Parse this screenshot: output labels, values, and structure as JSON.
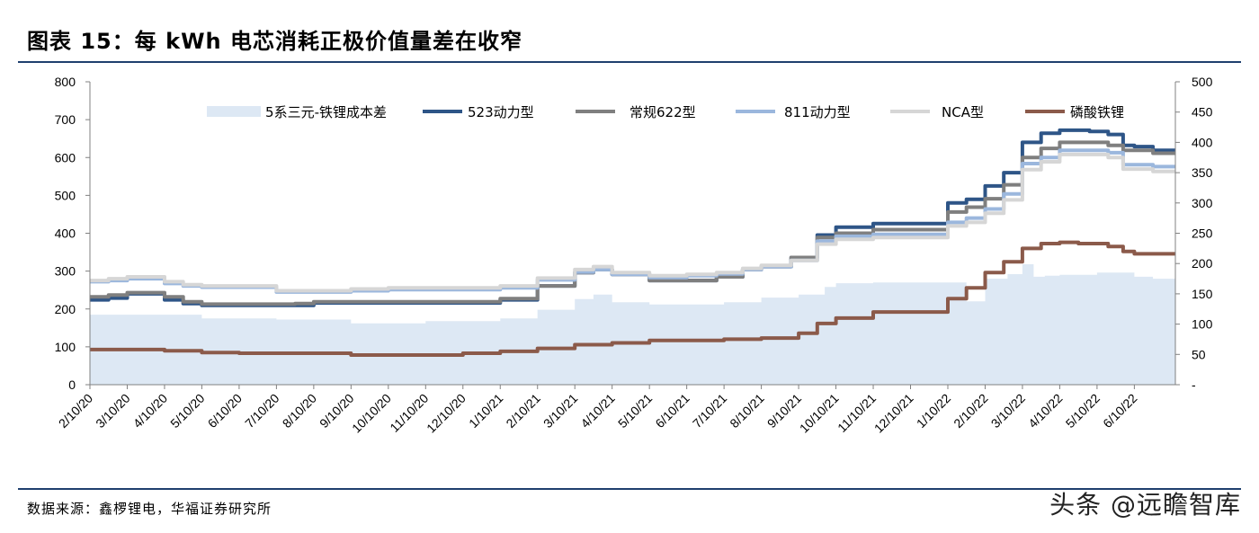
{
  "header": {
    "title": "图表 15：每 kWh 电芯消耗正极价值量差在收窄"
  },
  "footer": {
    "source": "数据来源：鑫椤锂电，华福证券研究所",
    "watermark": "头条 @远瞻智库"
  },
  "colors": {
    "rule": "#1f3f6e",
    "area": "#dde8f4",
    "s523": "#2e5587",
    "s622": "#7f7f7f",
    "s811": "#9bb7dd",
    "nca": "#d6d6d6",
    "lfp": "#8b5a4a"
  },
  "chart_data": {
    "type": "line",
    "x_labels": [
      "2/10/20",
      "3/10/20",
      "4/10/20",
      "5/10/20",
      "6/10/20",
      "7/10/20",
      "8/10/20",
      "9/10/20",
      "10/10/20",
      "11/10/20",
      "12/10/20",
      "1/10/21",
      "2/10/21",
      "3/10/21",
      "4/10/21",
      "5/10/21",
      "6/10/21",
      "7/10/21",
      "8/10/21",
      "9/10/21",
      "10/10/21",
      "11/10/21",
      "12/10/21",
      "1/10/22",
      "2/10/22",
      "3/10/22",
      "4/10/22",
      "5/10/22",
      "6/10/22"
    ],
    "y_left": {
      "min": 0,
      "max": 800,
      "ticks": [
        "0",
        "100",
        "200",
        "300",
        "400",
        "500",
        "600",
        "700",
        "800"
      ]
    },
    "y_right": {
      "min": 0,
      "max": 500,
      "ticks": [
        "-",
        "50",
        "100",
        "150",
        "200",
        "250",
        "300",
        "350",
        "400",
        "450",
        "500"
      ]
    },
    "x_range": [
      0,
      29.1
    ],
    "grid": false,
    "legend_position": "top",
    "series": [
      {
        "name": "5系三元-铁锂成本差",
        "kind": "area",
        "axis": "left",
        "color_key": "area",
        "points": [
          [
            0,
            185
          ],
          [
            2,
            185
          ],
          [
            3,
            175
          ],
          [
            5,
            172
          ],
          [
            7,
            162
          ],
          [
            9,
            168
          ],
          [
            11,
            175
          ],
          [
            12,
            198
          ],
          [
            13,
            226
          ],
          [
            13.5,
            238
          ],
          [
            14,
            218
          ],
          [
            15,
            212
          ],
          [
            16,
            212
          ],
          [
            17,
            218
          ],
          [
            18,
            230
          ],
          [
            19,
            238
          ],
          [
            19.7,
            258
          ],
          [
            20,
            268
          ],
          [
            21,
            270
          ],
          [
            22,
            270
          ],
          [
            23,
            270
          ],
          [
            23.5,
            220
          ],
          [
            24,
            280
          ],
          [
            24.6,
            292
          ],
          [
            25,
            318
          ],
          [
            25.3,
            285
          ],
          [
            25.6,
            288
          ],
          [
            26,
            290
          ],
          [
            27,
            296
          ],
          [
            28,
            285
          ],
          [
            28.5,
            280
          ],
          [
            29.1,
            280
          ]
        ]
      },
      {
        "name": "523动力型",
        "kind": "line",
        "axis": "right",
        "color_key": "s523",
        "width": 4,
        "points": [
          [
            0,
            140
          ],
          [
            0.5,
            143
          ],
          [
            1,
            150
          ],
          [
            1.7,
            150
          ],
          [
            2,
            140
          ],
          [
            2.5,
            134
          ],
          [
            3,
            131
          ],
          [
            4,
            131
          ],
          [
            5,
            131
          ],
          [
            5.5,
            131
          ],
          [
            6,
            135
          ],
          [
            7,
            135
          ],
          [
            8,
            135
          ],
          [
            9,
            135
          ],
          [
            10,
            135
          ],
          [
            11,
            140
          ],
          [
            12,
            163
          ],
          [
            13,
            185
          ],
          [
            13.5,
            190
          ],
          [
            14,
            182
          ],
          [
            15,
            172
          ],
          [
            16,
            172
          ],
          [
            16.8,
            178
          ],
          [
            17.5,
            190
          ],
          [
            18,
            195
          ],
          [
            18.8,
            210
          ],
          [
            19.5,
            247
          ],
          [
            20,
            260
          ],
          [
            21,
            266
          ],
          [
            22,
            266
          ],
          [
            23,
            300
          ],
          [
            23.5,
            306
          ],
          [
            24,
            328
          ],
          [
            24.5,
            350
          ],
          [
            25,
            400
          ],
          [
            25.5,
            415
          ],
          [
            26,
            420
          ],
          [
            26.8,
            418
          ],
          [
            27.3,
            413
          ],
          [
            27.7,
            395
          ],
          [
            28,
            393
          ],
          [
            28.5,
            387
          ],
          [
            29.1,
            387
          ]
        ]
      },
      {
        "name": "常规622型",
        "kind": "line",
        "axis": "right",
        "color_key": "s622",
        "width": 4,
        "points": [
          [
            0,
            145
          ],
          [
            0.5,
            148
          ],
          [
            1,
            152
          ],
          [
            1.7,
            152
          ],
          [
            2,
            145
          ],
          [
            2.5,
            137
          ],
          [
            3,
            133
          ],
          [
            4,
            133
          ],
          [
            5,
            133
          ],
          [
            5.5,
            134
          ],
          [
            6,
            137
          ],
          [
            7,
            137
          ],
          [
            8,
            137
          ],
          [
            9,
            137
          ],
          [
            10,
            137
          ],
          [
            11,
            142
          ],
          [
            12,
            163
          ],
          [
            13,
            185
          ],
          [
            13.5,
            190
          ],
          [
            14,
            182
          ],
          [
            15,
            172
          ],
          [
            16,
            172
          ],
          [
            16.8,
            178
          ],
          [
            17.5,
            190
          ],
          [
            18,
            195
          ],
          [
            18.8,
            210
          ],
          [
            19.5,
            243
          ],
          [
            20,
            250
          ],
          [
            21,
            256
          ],
          [
            22,
            256
          ],
          [
            23,
            285
          ],
          [
            23.5,
            293
          ],
          [
            24,
            307
          ],
          [
            24.5,
            330
          ],
          [
            25,
            375
          ],
          [
            25.5,
            390
          ],
          [
            26,
            400
          ],
          [
            26.8,
            400
          ],
          [
            27.3,
            395
          ],
          [
            27.7,
            387
          ],
          [
            28,
            387
          ],
          [
            28.5,
            382
          ],
          [
            29.1,
            382
          ]
        ]
      },
      {
        "name": "811动力型",
        "kind": "line",
        "axis": "right",
        "color_key": "s811",
        "width": 4,
        "points": [
          [
            0,
            170
          ],
          [
            0.5,
            172
          ],
          [
            1,
            175
          ],
          [
            1.7,
            175
          ],
          [
            2,
            167
          ],
          [
            2.5,
            163
          ],
          [
            3,
            161
          ],
          [
            4,
            161
          ],
          [
            5,
            153
          ],
          [
            6,
            153
          ],
          [
            7,
            155
          ],
          [
            8,
            157
          ],
          [
            9,
            157
          ],
          [
            10,
            157
          ],
          [
            11,
            160
          ],
          [
            12,
            173
          ],
          [
            13,
            186
          ],
          [
            13.5,
            190
          ],
          [
            14,
            182
          ],
          [
            15,
            177
          ],
          [
            16,
            180
          ],
          [
            16.8,
            183
          ],
          [
            17.5,
            190
          ],
          [
            18,
            195
          ],
          [
            18.8,
            205
          ],
          [
            19.5,
            237
          ],
          [
            20,
            245
          ],
          [
            21,
            248
          ],
          [
            22,
            248
          ],
          [
            23,
            268
          ],
          [
            23.5,
            275
          ],
          [
            24,
            290
          ],
          [
            24.5,
            315
          ],
          [
            25,
            365
          ],
          [
            25.5,
            375
          ],
          [
            26,
            387
          ],
          [
            26.8,
            387
          ],
          [
            27.3,
            383
          ],
          [
            27.7,
            363
          ],
          [
            28,
            363
          ],
          [
            28.5,
            360
          ],
          [
            29.1,
            360
          ]
        ]
      },
      {
        "name": "NCA型",
        "kind": "line",
        "axis": "right",
        "color_key": "nca",
        "width": 4,
        "points": [
          [
            0,
            172
          ],
          [
            0.5,
            175
          ],
          [
            1,
            178
          ],
          [
            1.7,
            178
          ],
          [
            2,
            170
          ],
          [
            2.5,
            165
          ],
          [
            3,
            163
          ],
          [
            4,
            163
          ],
          [
            5,
            155
          ],
          [
            6,
            155
          ],
          [
            7,
            158
          ],
          [
            8,
            160
          ],
          [
            9,
            160
          ],
          [
            10,
            160
          ],
          [
            11,
            163
          ],
          [
            12,
            176
          ],
          [
            13,
            190
          ],
          [
            13.5,
            195
          ],
          [
            14,
            185
          ],
          [
            15,
            180
          ],
          [
            16,
            182
          ],
          [
            16.8,
            185
          ],
          [
            17.5,
            192
          ],
          [
            18,
            197
          ],
          [
            18.8,
            205
          ],
          [
            19.5,
            232
          ],
          [
            20,
            240
          ],
          [
            21,
            243
          ],
          [
            22,
            243
          ],
          [
            23,
            262
          ],
          [
            23.5,
            268
          ],
          [
            24,
            283
          ],
          [
            24.5,
            305
          ],
          [
            25,
            355
          ],
          [
            25.5,
            368
          ],
          [
            26,
            380
          ],
          [
            26.8,
            380
          ],
          [
            27.3,
            375
          ],
          [
            27.7,
            356
          ],
          [
            28,
            356
          ],
          [
            28.5,
            352
          ],
          [
            29.1,
            352
          ]
        ]
      },
      {
        "name": "磷酸铁锂",
        "kind": "line",
        "axis": "right",
        "color_key": "lfp",
        "width": 4,
        "points": [
          [
            0,
            58
          ],
          [
            1,
            58
          ],
          [
            2,
            56
          ],
          [
            3,
            53
          ],
          [
            4,
            52
          ],
          [
            5,
            52
          ],
          [
            6,
            52
          ],
          [
            7,
            49
          ],
          [
            8,
            49
          ],
          [
            9,
            49
          ],
          [
            10,
            52
          ],
          [
            11,
            55
          ],
          [
            12,
            60
          ],
          [
            13,
            66
          ],
          [
            14,
            69
          ],
          [
            15,
            73
          ],
          [
            16,
            73
          ],
          [
            17,
            75
          ],
          [
            18,
            77
          ],
          [
            19,
            85
          ],
          [
            19.5,
            101
          ],
          [
            20,
            110
          ],
          [
            21,
            120
          ],
          [
            22,
            120
          ],
          [
            23,
            142
          ],
          [
            23.5,
            160
          ],
          [
            24,
            185
          ],
          [
            24.5,
            203
          ],
          [
            25,
            225
          ],
          [
            25.5,
            233
          ],
          [
            26,
            235
          ],
          [
            26.5,
            233
          ],
          [
            27.3,
            228
          ],
          [
            27.7,
            220
          ],
          [
            28,
            216
          ],
          [
            28.5,
            216
          ],
          [
            29.1,
            216
          ]
        ]
      }
    ]
  }
}
